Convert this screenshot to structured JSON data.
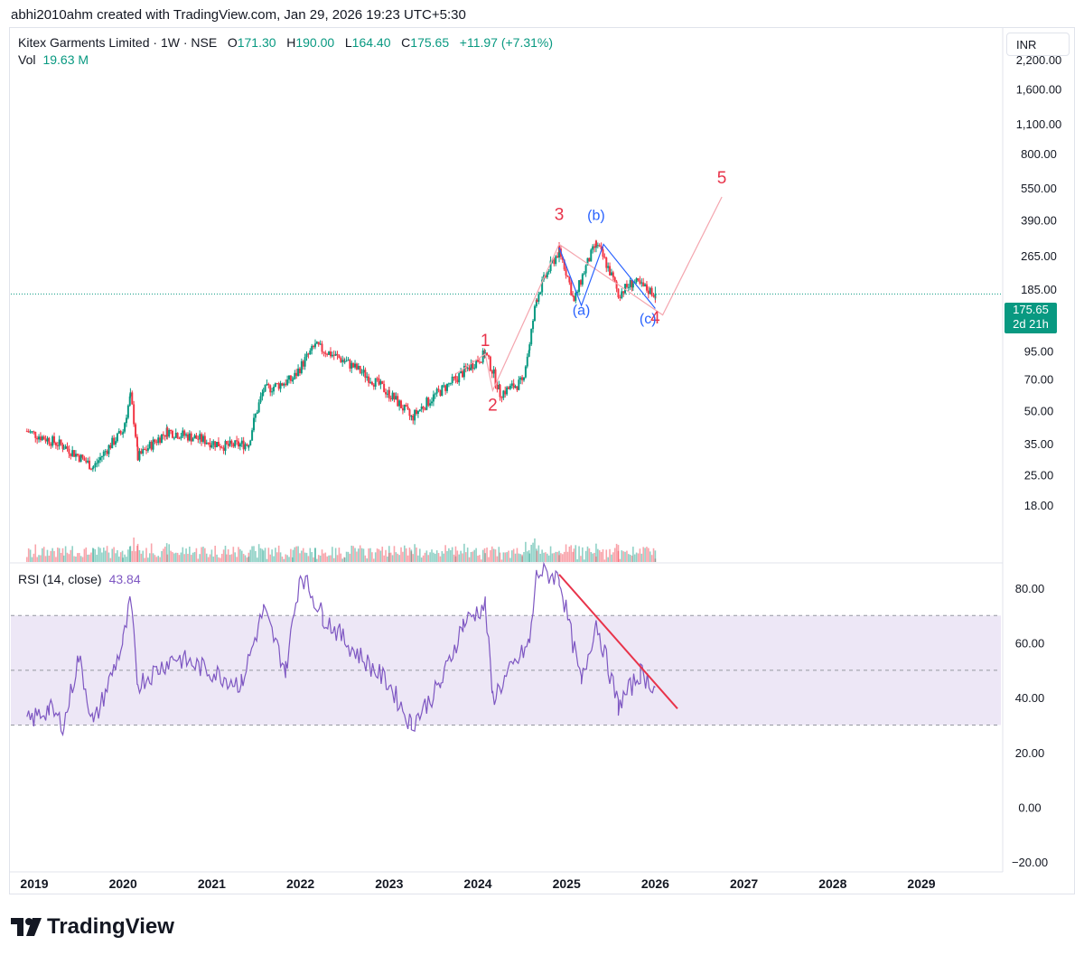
{
  "header": {
    "text": "abhi2010ahm created with TradingView.com, Jan 29, 2026 19:23 UTC+5:30"
  },
  "legend": {
    "symbol": "Kitex Garments Limited · 1W · NSE",
    "open_label": "O",
    "open": "171.30",
    "high_label": "H",
    "high": "190.00",
    "low_label": "L",
    "low": "164.40",
    "close_label": "C",
    "close": "175.65",
    "change": "+11.97 (+7.31%)",
    "vol_label": "Vol",
    "vol": "19.63 M",
    "rsi_label": "RSI (14, close)",
    "rsi": "43.84"
  },
  "currency": "INR",
  "price_tag": {
    "price": "175.65",
    "countdown": "2d 21h"
  },
  "footer": {
    "brand": "TradingView"
  },
  "colors": {
    "up": "#089981",
    "down": "#f23645",
    "rsi": "#7e57c2",
    "wave_red": "#e8334a",
    "wave_blue": "#2962ff",
    "band": "#ede7f6"
  },
  "chart_data": [
    {
      "type": "candlestick",
      "title": "Kitex Garments Limited · 1W · NSE",
      "y_scale": "log",
      "y_ticks": [
        "2,200.00",
        "1,600.00",
        "1,100.00",
        "800.00",
        "550.00",
        "390.00",
        "265.00",
        "185.00",
        "135.00",
        "95.00",
        "70.00",
        "50.00",
        "35.00",
        "25.00",
        "18.00"
      ],
      "x_ticks": [
        "2019",
        "2020",
        "2021",
        "2022",
        "2023",
        "2024",
        "2025",
        "2026",
        "2027",
        "2028",
        "2029"
      ],
      "key_points": [
        {
          "date": "2018-12",
          "close": 40
        },
        {
          "date": "2019-05",
          "close": 34
        },
        {
          "date": "2019-09",
          "close": 27
        },
        {
          "date": "2020-01",
          "close": 40
        },
        {
          "date": "2020-02",
          "close": 58
        },
        {
          "date": "2020-03",
          "close": 30
        },
        {
          "date": "2020-07",
          "close": 40
        },
        {
          "date": "2021-03",
          "close": 34
        },
        {
          "date": "2021-06",
          "close": 35
        },
        {
          "date": "2021-08",
          "close": 62
        },
        {
          "date": "2021-12",
          "close": 70
        },
        {
          "date": "2022-03",
          "close": 100
        },
        {
          "date": "2022-07",
          "close": 85
        },
        {
          "date": "2023-01",
          "close": 60
        },
        {
          "date": "2023-04",
          "close": 46
        },
        {
          "date": "2023-10",
          "close": 70
        },
        {
          "date": "2024-02",
          "close": 92
        },
        {
          "date": "2024-04",
          "close": 60
        },
        {
          "date": "2024-07",
          "close": 68
        },
        {
          "date": "2024-08",
          "close": 100
        },
        {
          "date": "2024-09",
          "close": 170
        },
        {
          "date": "2024-12",
          "close": 280
        },
        {
          "date": "2025-02",
          "close": 160
        },
        {
          "date": "2025-05",
          "close": 300
        },
        {
          "date": "2025-08",
          "close": 175
        },
        {
          "date": "2025-10",
          "close": 200
        },
        {
          "date": "2026-01",
          "close": 175.65
        }
      ],
      "last": {
        "open": 171.3,
        "high": 190.0,
        "low": 164.4,
        "close": 175.65
      },
      "volume_last": "19.63 M",
      "annotations": {
        "wave_labels": [
          {
            "label": "1",
            "date": "2024-02",
            "price": 100
          },
          {
            "label": "2",
            "date": "2024-03",
            "price": 50
          },
          {
            "label": "3",
            "date": "2024-12",
            "price": 390
          },
          {
            "label": "4",
            "date": "2026-01",
            "price": 128
          },
          {
            "label": "5",
            "date": "2026-10",
            "price": 580
          },
          {
            "label": "(a)",
            "date": "2025-03",
            "price": 140
          },
          {
            "label": "(b)",
            "date": "2025-05",
            "price": 390
          },
          {
            "label": "(c)",
            "date": "2025-12",
            "price": 128
          }
        ],
        "projection": [
          {
            "date": "2023-10",
            "price": 74
          },
          {
            "date": "2024-02",
            "price": 92
          },
          {
            "date": "2024-03",
            "price": 62
          },
          {
            "date": "2024-12",
            "price": 300
          },
          {
            "date": "2026-02",
            "price": 140
          },
          {
            "date": "2026-10",
            "price": 500
          }
        ],
        "correction": [
          {
            "date": "2024-12",
            "price": 290
          },
          {
            "date": "2025-03",
            "price": 155
          },
          {
            "date": "2025-06",
            "price": 300
          },
          {
            "date": "2026-01",
            "price": 150
          }
        ]
      }
    },
    {
      "type": "line",
      "title": "RSI (14, close)",
      "y_ticks": [
        "80.00",
        "60.00",
        "40.00",
        "20.00",
        "0.00",
        "−20.00"
      ],
      "ylim": [
        -20,
        90
      ],
      "bands": [
        30,
        50,
        70
      ],
      "last": 43.84,
      "key_points": [
        {
          "date": "2018-12",
          "value": 31
        },
        {
          "date": "2019-03",
          "value": 36
        },
        {
          "date": "2019-05",
          "value": 30
        },
        {
          "date": "2019-07",
          "value": 55
        },
        {
          "date": "2019-09",
          "value": 30
        },
        {
          "date": "2020-01",
          "value": 60
        },
        {
          "date": "2020-02",
          "value": 75
        },
        {
          "date": "2020-03",
          "value": 45
        },
        {
          "date": "2020-08",
          "value": 55
        },
        {
          "date": "2021-05",
          "value": 45
        },
        {
          "date": "2021-08",
          "value": 72
        },
        {
          "date": "2021-11",
          "value": 50
        },
        {
          "date": "2022-01",
          "value": 86
        },
        {
          "date": "2022-04",
          "value": 70
        },
        {
          "date": "2022-08",
          "value": 58
        },
        {
          "date": "2023-01",
          "value": 45
        },
        {
          "date": "2023-04",
          "value": 30
        },
        {
          "date": "2023-08",
          "value": 45
        },
        {
          "date": "2023-11",
          "value": 67
        },
        {
          "date": "2024-02",
          "value": 74
        },
        {
          "date": "2024-03",
          "value": 40
        },
        {
          "date": "2024-08",
          "value": 60
        },
        {
          "date": "2024-09",
          "value": 86
        },
        {
          "date": "2024-12",
          "value": 84
        },
        {
          "date": "2025-03",
          "value": 45
        },
        {
          "date": "2025-05",
          "value": 68
        },
        {
          "date": "2025-08",
          "value": 37
        },
        {
          "date": "2025-11",
          "value": 49
        },
        {
          "date": "2026-01",
          "value": 43.84
        }
      ],
      "trendline": [
        {
          "date": "2024-12",
          "value": 85
        },
        {
          "date": "2026-04",
          "value": 36
        }
      ]
    }
  ]
}
